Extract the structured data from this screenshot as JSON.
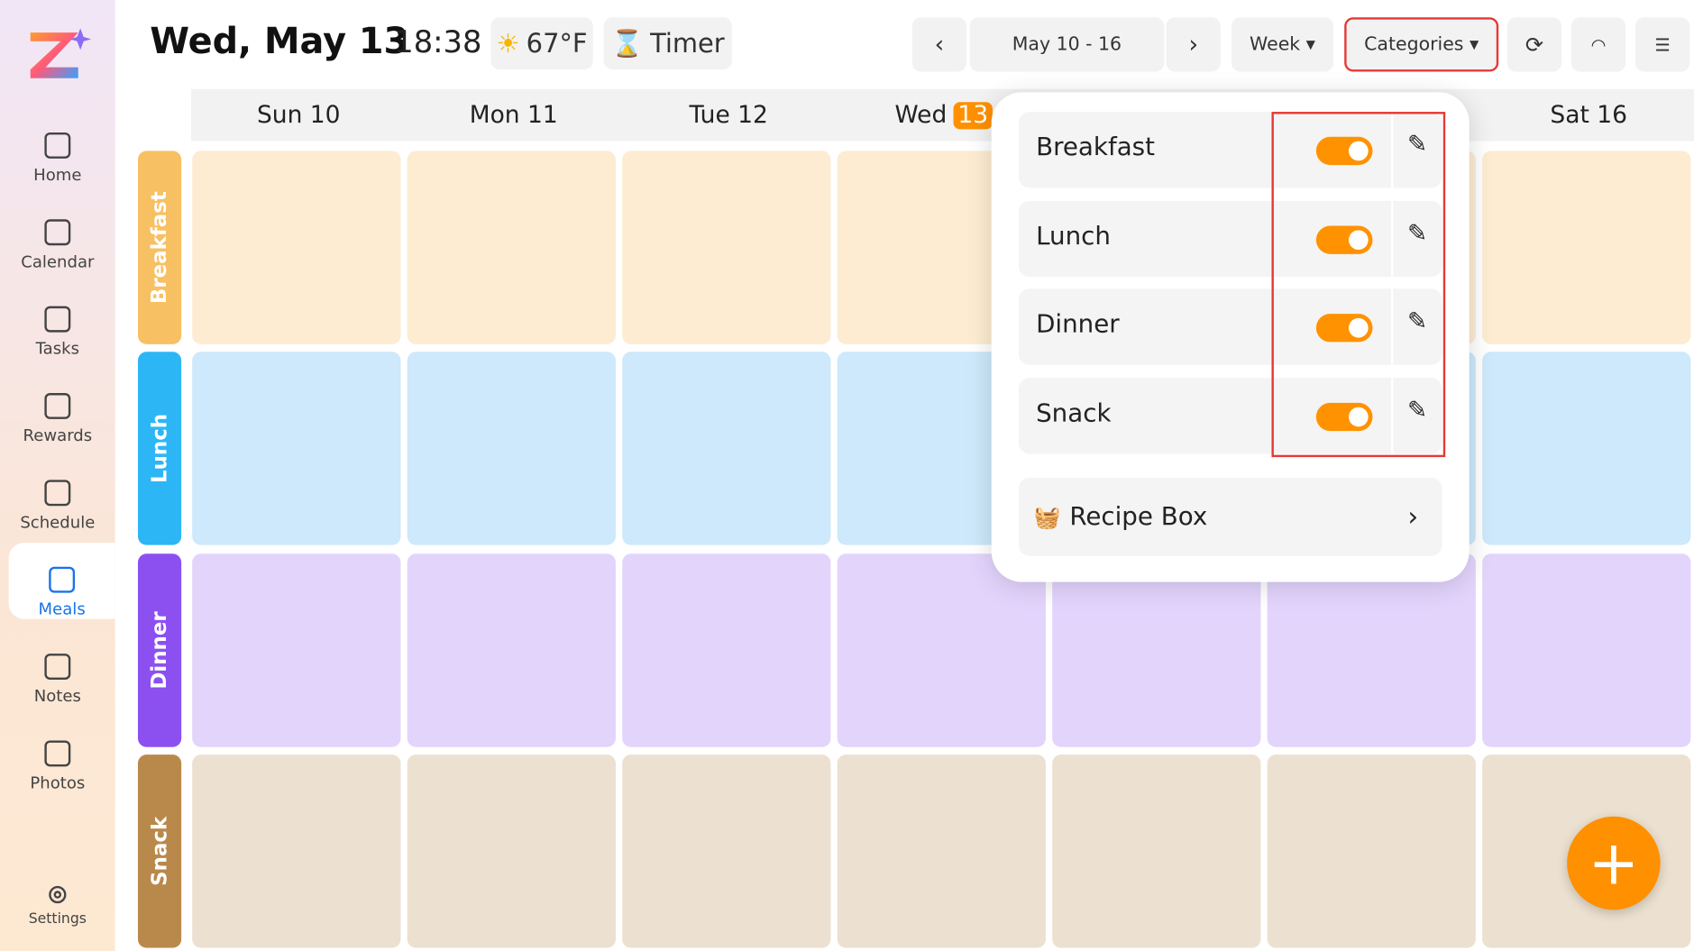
{
  "header": {
    "date": "Wed, May 13",
    "time": "18:38",
    "weather": "67°F",
    "timer": "Timer",
    "range": "May 10 - 16",
    "view": "Week",
    "categories_button": "Categories"
  },
  "sidebar": {
    "items": [
      "Home",
      "Calendar",
      "Tasks",
      "Rewards",
      "Schedule",
      "Meals",
      "Notes",
      "Photos"
    ],
    "active": 5,
    "settings": "Settings"
  },
  "days": [
    {
      "name": "Sun 10"
    },
    {
      "name": "Mon 11"
    },
    {
      "name": "Tue 12"
    },
    {
      "name": "Wed",
      "badge": "13"
    },
    null,
    null,
    {
      "name": "Sat 16"
    }
  ],
  "meals": [
    {
      "name": "Breakfast",
      "color": "#f7c062",
      "cell": "#fdecd2"
    },
    {
      "name": "Lunch",
      "color": "#2db6f6",
      "cell": "#cde9fb"
    },
    {
      "name": "Dinner",
      "color": "#8c50f0",
      "cell": "#e3d4fc"
    },
    {
      "name": "Snack",
      "color": "#b9894b",
      "cell": "#ece1d0"
    }
  ],
  "popup": {
    "categories": [
      "Breakfast",
      "Lunch",
      "Dinner",
      "Snack"
    ],
    "recipe_box": "Recipe Box"
  }
}
